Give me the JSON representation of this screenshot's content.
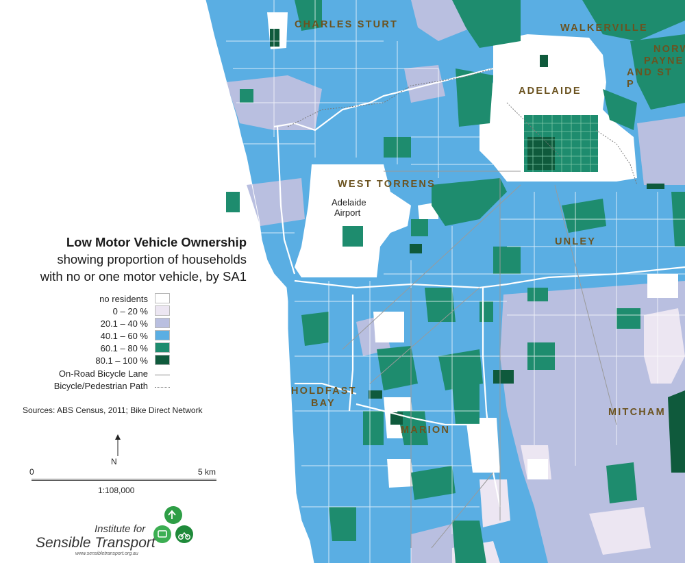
{
  "legend": {
    "title": "Low Motor Vehicle Ownership",
    "subtitle_line1": "showing proportion of households",
    "subtitle_line2": "with no or one motor vehicle, by SA1",
    "classes": [
      {
        "label": "no residents",
        "color": "#ffffff"
      },
      {
        "label": "0 – 20 %",
        "color": "#ece6f2"
      },
      {
        "label": "20.1 – 40 %",
        "color": "#b9bfe0"
      },
      {
        "label": "40.1 – 60 %",
        "color": "#5aaee3"
      },
      {
        "label": "60.1 – 80 %",
        "color": "#1e8c6e"
      },
      {
        "label": "80.1 – 100 %",
        "color": "#0f5a3c"
      }
    ],
    "on_road_label": "On-Road Bicycle Lane",
    "path_label": "Bicycle/Pedestrian Path"
  },
  "sources": "Sources: ABS Census, 2011; Bike Direct Network",
  "north_label": "N",
  "scale": {
    "zero": "0",
    "max": "5 km",
    "ratio": "1:108,000"
  },
  "org": {
    "line1": "Institute for",
    "line2": "Sensible Transport",
    "url": "www.sensibletransport.org.au",
    "logo_icon": "recycling-transport-logo-icon",
    "logo_color": "#2e9e46"
  },
  "regions": {
    "charles_sturt": "CHARLES STURT",
    "walkerville": "WALKERVILLE",
    "norwood_line1": "NORW",
    "norwood_line2": "PAYNE",
    "norwood_line3": "AND ST P",
    "adelaide": "ADELAIDE",
    "west_torrens": "WEST TORRENS",
    "unley": "UNLEY",
    "holdfast_line1": "HOLDFAST",
    "holdfast_line2": "BAY",
    "marion": "MARION",
    "mitcham": "MITCHAM"
  },
  "places": {
    "airport_line1": "Adelaide",
    "airport_line2": "Airport"
  },
  "colors": {
    "coast_sea": "#ffffff",
    "boundary": "#ffffff",
    "label_brown": "#6b5320"
  }
}
